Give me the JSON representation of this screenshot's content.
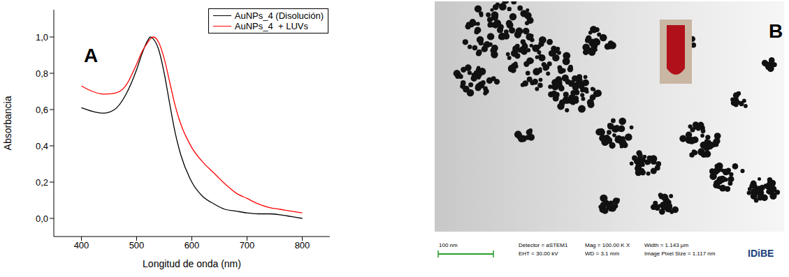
{
  "chart_data": {
    "type": "line",
    "panel_label": "A",
    "x_label": "Longitud de onda (nm)",
    "y_label": "Absorbancia",
    "x": [
      400,
      420,
      440,
      460,
      480,
      500,
      510,
      520,
      525,
      530,
      540,
      550,
      560,
      570,
      580,
      600,
      620,
      640,
      660,
      680,
      700,
      720,
      740,
      760,
      780,
      800
    ],
    "series": [
      {
        "name": "AuNPs_4 (Disolución)",
        "color": "#000000",
        "values": [
          0.61,
          0.59,
          0.58,
          0.6,
          0.68,
          0.82,
          0.91,
          0.98,
          1.0,
          0.99,
          0.93,
          0.8,
          0.63,
          0.47,
          0.35,
          0.2,
          0.12,
          0.08,
          0.05,
          0.04,
          0.03,
          0.025,
          0.025,
          0.02,
          0.01,
          0.0
        ]
      },
      {
        "name": "AuNPs_4  + LUVs",
        "color": "#ff0000",
        "values": [
          0.73,
          0.7,
          0.685,
          0.69,
          0.73,
          0.85,
          0.92,
          0.97,
          0.99,
          1.0,
          0.97,
          0.88,
          0.75,
          0.62,
          0.52,
          0.39,
          0.31,
          0.25,
          0.19,
          0.14,
          0.11,
          0.08,
          0.06,
          0.05,
          0.04,
          0.03
        ]
      }
    ],
    "xlim": [
      350,
      850
    ],
    "xticks": [
      400,
      500,
      600,
      700,
      800
    ],
    "ylim": [
      -0.1,
      1.15
    ],
    "yticks": [
      {
        "value": 0,
        "label": "0,0"
      },
      {
        "value": 0.2,
        "label": "0,2"
      },
      {
        "value": 0.4,
        "label": "0,4"
      },
      {
        "value": 0.6,
        "label": "0,6"
      },
      {
        "value": 0.8,
        "label": "0,8"
      },
      {
        "value": 1.0,
        "label": "1,0"
      }
    ],
    "legend": "upper right",
    "grid": false
  },
  "image": {
    "panel_label": "B",
    "scale_bar": "100 nm",
    "info": [
      "Detector = aSTEM1",
      "EHT = 30.00 kV",
      "Mag = 100.00 K X",
      "WD = 3.1 mm",
      "Width = 1.143 µm",
      "Image Pixel Size = 1.117 nm"
    ],
    "logo": "IDiBE"
  }
}
